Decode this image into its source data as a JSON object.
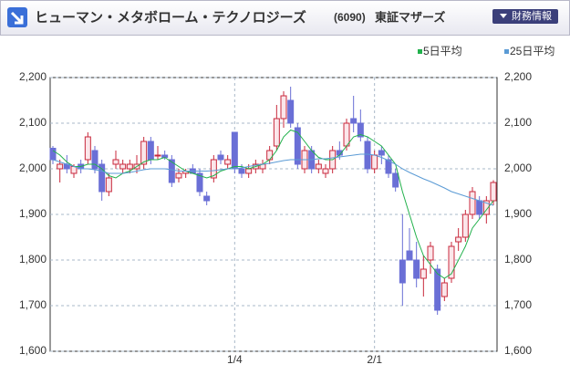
{
  "chart_data": {
    "type": "candlestick",
    "title": "ヒューマン・メタボローム・テクノロジーズ",
    "code": "(6090)",
    "market": "東証マザーズ",
    "button": "財務情報",
    "categories": [
      null,
      null,
      null,
      null,
      null,
      null,
      null,
      null,
      null,
      null,
      null,
      null,
      null,
      null,
      null,
      null,
      null,
      null,
      null,
      null,
      null,
      null,
      null,
      null,
      null,
      null,
      "1/4",
      null,
      null,
      null,
      null,
      null,
      null,
      null,
      null,
      null,
      null,
      null,
      null,
      null,
      null,
      null,
      null,
      null,
      null,
      null,
      "2/1",
      null,
      null,
      null,
      null,
      null,
      null,
      null,
      null,
      null,
      null,
      null,
      null,
      null,
      null,
      null,
      null,
      null
    ],
    "open": [
      2045,
      2000,
      2010,
      1990,
      2010,
      2020,
      2040,
      2010,
      1950,
      2010,
      2000,
      2000,
      2000,
      2010,
      2060,
      2030,
      2030,
      2020,
      1980,
      1990,
      2000,
      1990,
      1940,
      1980,
      2030,
      2010,
      2080,
      2000,
      1990,
      2000,
      2000,
      2020,
      2050,
      2110,
      2150,
      2090,
      2000,
      2040,
      2000,
      1990,
      2000,
      2040,
      2050,
      2110,
      2100,
      2060,
      2000,
      2040,
      2020,
      1990,
      1800,
      1820,
      1800,
      1760,
      1800,
      1780,
      1720,
      1760,
      1840,
      1850,
      1900,
      1930,
      1900,
      1930
    ],
    "high": [
      2050,
      2020,
      2030,
      2010,
      2020,
      2080,
      2050,
      2020,
      1990,
      2040,
      2020,
      2020,
      2030,
      2070,
      2070,
      2050,
      2040,
      2030,
      2000,
      2000,
      2010,
      2000,
      1950,
      2030,
      2040,
      2030,
      2080,
      2010,
      2010,
      2020,
      2020,
      2050,
      2140,
      2170,
      2180,
      2100,
      2050,
      2050,
      2020,
      2010,
      2050,
      2060,
      2110,
      2160,
      2130,
      2070,
      2040,
      2050,
      2030,
      2000,
      1900,
      1870,
      1840,
      1810,
      1840,
      1790,
      1760,
      1840,
      1870,
      1910,
      1960,
      1940,
      1940,
      1975
    ],
    "low": [
      2010,
      1970,
      1990,
      1980,
      1990,
      2010,
      1990,
      1930,
      1940,
      2000,
      1990,
      1990,
      1990,
      2000,
      2010,
      2020,
      2020,
      1960,
      1970,
      1980,
      1990,
      1940,
      1920,
      1970,
      2010,
      2000,
      1990,
      1980,
      1980,
      1990,
      1990,
      2010,
      2040,
      2090,
      2090,
      2000,
      1990,
      1990,
      1990,
      1980,
      1990,
      2020,
      2040,
      2080,
      2060,
      1990,
      1990,
      2010,
      1980,
      1950,
      1700,
      1800,
      1740,
      1720,
      1770,
      1680,
      1710,
      1750,
      1820,
      1840,
      1890,
      1890,
      1880,
      1920
    ],
    "close": [
      2020,
      2010,
      2000,
      2005,
      2000,
      2070,
      2000,
      1950,
      1980,
      2020,
      2010,
      2010,
      2010,
      2060,
      2020,
      2030,
      2025,
      1970,
      1990,
      1995,
      1990,
      1950,
      1930,
      2020,
      2020,
      2020,
      2000,
      1990,
      2000,
      2010,
      2010,
      2040,
      2110,
      2160,
      2100,
      2010,
      2040,
      2000,
      2010,
      2000,
      2040,
      2030,
      2100,
      2100,
      2070,
      2000,
      2030,
      2030,
      1990,
      1960,
      1750,
      1800,
      1760,
      1780,
      1830,
      1690,
      1750,
      1830,
      1850,
      1900,
      1950,
      1900,
      1930,
      1970
    ],
    "up_color": "#c8283c",
    "down_color": "#6a6fd6",
    "series": [
      {
        "name": "5日平均",
        "color": "#22b14c",
        "values": [
          2040,
          2030,
          2015,
          2005,
          2005,
          2010,
          2010,
          2000,
          1985,
          1980,
          1990,
          1995,
          2005,
          2015,
          2020,
          2020,
          2025,
          2015,
          2005,
          1995,
          1990,
          1985,
          1980,
          1985,
          1995,
          2000,
          2005,
          2005,
          2000,
          2005,
          2010,
          2020,
          2040,
          2070,
          2085,
          2080,
          2060,
          2040,
          2025,
          2020,
          2020,
          2030,
          2050,
          2070,
          2075,
          2070,
          2060,
          2050,
          2030,
          2010,
          1950,
          1900,
          1850,
          1810,
          1790,
          1770,
          1760,
          1770,
          1800,
          1830,
          1870,
          1890,
          1910,
          1930
        ]
      },
      {
        "name": "25日平均",
        "color": "#5b9bd5",
        "values": [
          2020,
          2015,
          2010,
          2005,
          2000,
          2000,
          1998,
          1995,
          1990,
          1990,
          1990,
          1992,
          1995,
          1998,
          2000,
          2000,
          2000,
          1998,
          1995,
          1995,
          1995,
          1995,
          1995,
          1996,
          1998,
          2000,
          2000,
          2002,
          2005,
          2008,
          2010,
          2012,
          2015,
          2018,
          2020,
          2020,
          2020,
          2020,
          2022,
          2022,
          2024,
          2026,
          2028,
          2030,
          2032,
          2032,
          2030,
          2025,
          2018,
          2010,
          2000,
          1992,
          1985,
          1978,
          1972,
          1965,
          1958,
          1950,
          1945,
          1940,
          1935,
          1930,
          1925,
          1920
        ]
      }
    ],
    "ylim": [
      1600,
      2200
    ],
    "yticks": [
      {
        "value": 1600,
        "label": "1,600"
      },
      {
        "value": 1700,
        "label": "1,700"
      },
      {
        "value": 1800,
        "label": "1,800"
      },
      {
        "value": 1900,
        "label": "1,900"
      },
      {
        "value": 2000,
        "label": "2,000"
      },
      {
        "value": 2100,
        "label": "2,100"
      },
      {
        "value": 2200,
        "label": "2,200"
      }
    ],
    "grid": true
  }
}
